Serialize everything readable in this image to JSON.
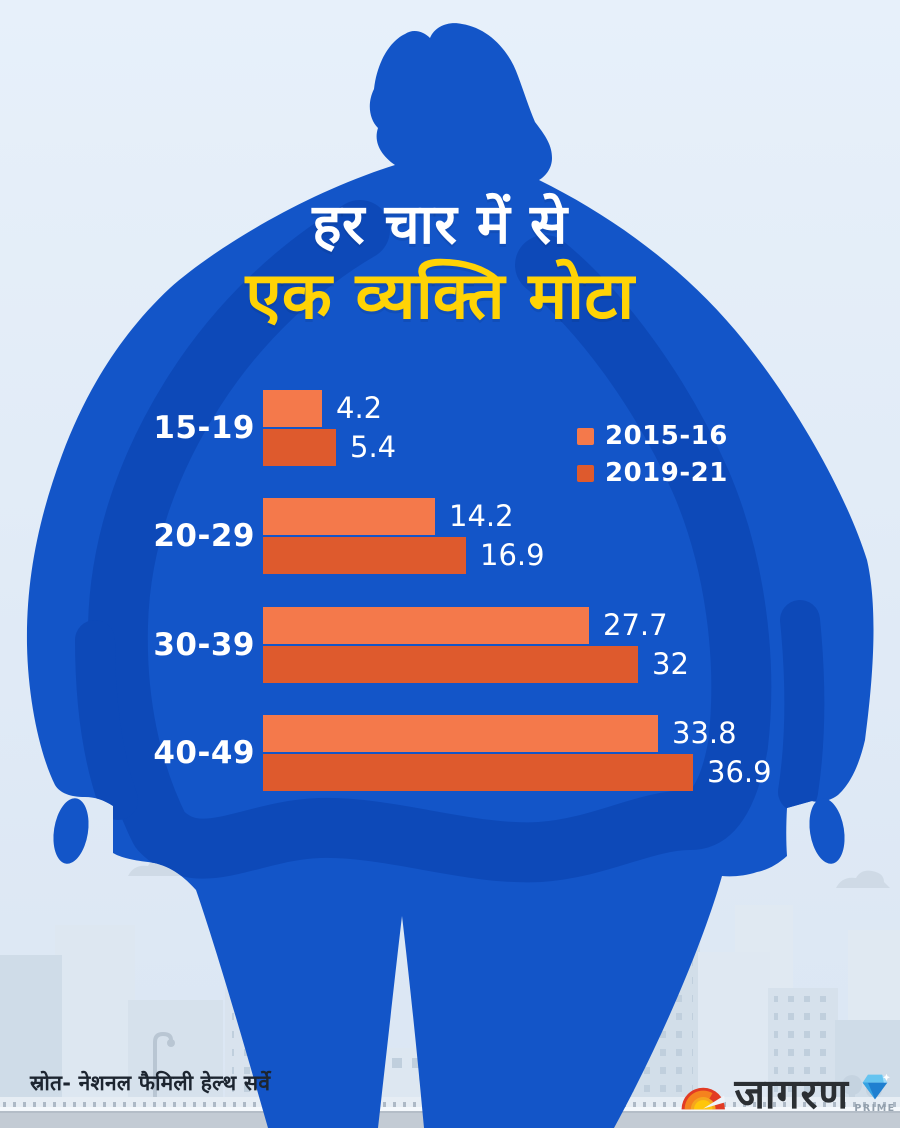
{
  "title": {
    "line1": "हर चार में से",
    "line2": "एक व्यक्ति मोटा"
  },
  "legend": [
    {
      "label": "2015-16",
      "color": "#f4794b"
    },
    {
      "label": "2019-21",
      "color": "#de5a2d"
    }
  ],
  "chart_data": {
    "type": "bar",
    "orientation": "horizontal",
    "title": "हर चार में से एक व्यक्ति मोटा",
    "categories": [
      "15-19",
      "20-29",
      "30-39",
      "40-49"
    ],
    "series": [
      {
        "name": "2015-16",
        "color": "#f4794b",
        "values": [
          4.2,
          14.2,
          27.7,
          33.8
        ]
      },
      {
        "name": "2019-21",
        "color": "#de5a2d",
        "values": [
          5.4,
          16.9,
          32,
          36.9
        ]
      }
    ],
    "xlim": [
      0,
      40
    ],
    "grid": false,
    "value_labels_shown": true,
    "legend_position": "right-of-first-group"
  },
  "source": {
    "text": "स्रोत- नेशनल फैमिली हेल्थ सर्वे"
  },
  "branding": {
    "logo_text": "जागरण",
    "sub_text": "PRIME"
  },
  "colors": {
    "body": "#1355c8",
    "shade": "#0d49b8",
    "bar1": "#f4794b",
    "bar2": "#de5a2d",
    "yellow": "#ffd305"
  }
}
